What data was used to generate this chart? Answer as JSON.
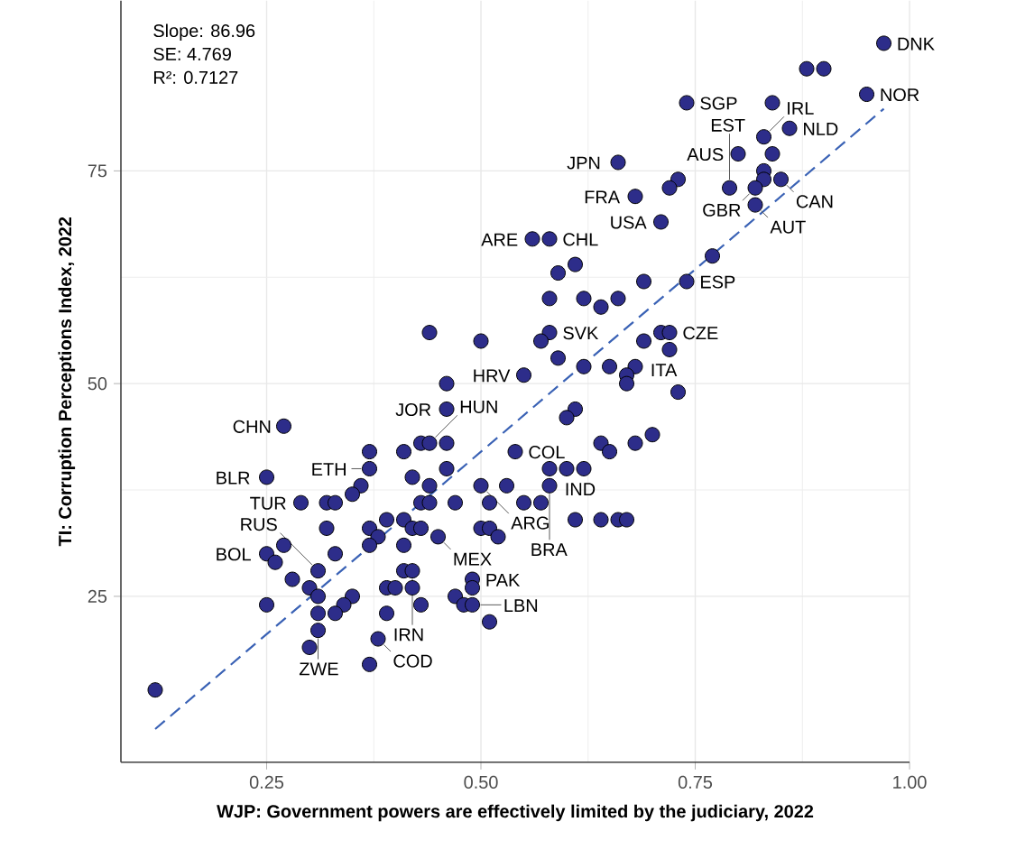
{
  "chart_data": {
    "type": "scatter",
    "xlabel": "WJP: Government powers are effectively limited by the judiciary, 2022",
    "ylabel": "TI: Corruption Perceptions Index, 2022",
    "xlim": [
      0.08,
      1.0
    ],
    "ylim": [
      5.5,
      95
    ],
    "xticks": [
      0.25,
      {
        "value": 0.5,
        "label": "0.50"
      },
      0.75,
      {
        "value": 1.0,
        "label": "1.00"
      }
    ],
    "yticks": [
      25,
      50,
      75
    ],
    "grid": true,
    "series": [
      {
        "type": "scatter",
        "color": "#2d2d8a",
        "marker": "circle",
        "x": [
          0.97,
          0.88,
          0.9,
          0.95,
          0.74,
          0.84,
          0.86,
          0.83,
          0.8,
          0.84,
          0.66,
          0.83,
          0.73,
          0.72,
          0.83,
          0.85,
          0.79,
          0.82,
          0.82,
          0.68,
          0.71,
          0.58,
          0.56,
          0.77,
          0.61,
          0.59,
          0.69,
          0.74,
          0.58,
          0.62,
          0.64,
          0.66,
          0.44,
          0.5,
          0.58,
          0.57,
          0.59,
          0.55,
          0.46,
          0.71,
          0.72,
          0.69,
          0.72,
          0.62,
          0.65,
          0.68,
          0.67,
          0.67,
          0.73,
          0.61,
          0.6,
          0.64,
          0.65,
          0.68,
          0.7,
          0.58,
          0.6,
          0.62,
          0.58,
          0.57,
          0.61,
          0.64,
          0.66,
          0.67,
          0.46,
          0.27,
          0.43,
          0.44,
          0.46,
          0.41,
          0.37,
          0.54,
          0.25,
          0.37,
          0.42,
          0.44,
          0.46,
          0.5,
          0.53,
          0.36,
          0.35,
          0.29,
          0.32,
          0.33,
          0.43,
          0.44,
          0.47,
          0.51,
          0.55,
          0.32,
          0.37,
          0.39,
          0.41,
          0.42,
          0.43,
          0.5,
          0.51,
          0.52,
          0.45,
          0.38,
          0.37,
          0.41,
          0.25,
          0.27,
          0.26,
          0.33,
          0.31,
          0.28,
          0.3,
          0.31,
          0.41,
          0.42,
          0.49,
          0.49,
          0.42,
          0.39,
          0.4,
          0.35,
          0.34,
          0.33,
          0.31,
          0.47,
          0.48,
          0.49,
          0.43,
          0.39,
          0.51,
          0.25,
          0.31,
          0.3,
          0.38,
          0.37,
          0.12
        ],
        "values": [
          90,
          87,
          87,
          84,
          83,
          83,
          80,
          79,
          77,
          77,
          76,
          75,
          74,
          73,
          74,
          74,
          73,
          73,
          71,
          72,
          69,
          67,
          67,
          65,
          64,
          63,
          62,
          62,
          60,
          60,
          59,
          60,
          56,
          55,
          56,
          55,
          53,
          51,
          50,
          56,
          56,
          55,
          54,
          52,
          52,
          52,
          51,
          50,
          49,
          47,
          46,
          43,
          42,
          43,
          44,
          40,
          40,
          40,
          38,
          36,
          34,
          34,
          34,
          34,
          47,
          45,
          43,
          43,
          43,
          42,
          42,
          42,
          39,
          40,
          39,
          38,
          40,
          38,
          38,
          38,
          37,
          36,
          36,
          36,
          36,
          36,
          36,
          36,
          36,
          33,
          33,
          34,
          34,
          33,
          33,
          33,
          33,
          32,
          32,
          32,
          31,
          31,
          30,
          31,
          29,
          30,
          28,
          27,
          26,
          25,
          28,
          28,
          27,
          26,
          26,
          26,
          26,
          25,
          24,
          23,
          23,
          25,
          24,
          24,
          24,
          23,
          22,
          24,
          21,
          19,
          20,
          17,
          14
        ]
      },
      {
        "type": "line",
        "color": "#3a62b5",
        "line_style": "dashed",
        "x": [
          0.12,
          0.97
        ],
        "values": [
          9.4,
          82.3
        ]
      }
    ],
    "annotations": [
      "Slope: 86.96",
      "SE: 4.769",
      "R²: 0.7127",
      {
        "text": "DNK",
        "x": 0.97,
        "y": 90
      },
      {
        "text": "NOR",
        "x": 0.95,
        "y": 84
      },
      {
        "text": "SGP",
        "x": 0.74,
        "y": 83
      },
      {
        "text": "NLD",
        "x": 0.86,
        "y": 80
      },
      {
        "text": "IRL",
        "x": 0.83,
        "y": 79
      },
      {
        "text": "AUS",
        "x": 0.8,
        "y": 77
      },
      {
        "text": "JPN",
        "x": 0.66,
        "y": 76
      },
      {
        "text": "CAN",
        "x": 0.85,
        "y": 74
      },
      {
        "text": "AUT",
        "x": 0.82,
        "y": 71
      },
      {
        "text": "GBR",
        "x": 0.82,
        "y": 73
      },
      {
        "text": "EST",
        "x": 0.79,
        "y": 73
      },
      {
        "text": "FRA",
        "x": 0.68,
        "y": 72
      },
      {
        "text": "USA",
        "x": 0.71,
        "y": 69
      },
      {
        "text": "CHL",
        "x": 0.58,
        "y": 67
      },
      {
        "text": "ARE",
        "x": 0.56,
        "y": 67
      },
      {
        "text": "ESP",
        "x": 0.74,
        "y": 62
      },
      {
        "text": "SVK",
        "x": 0.58,
        "y": 56
      },
      {
        "text": "CZE",
        "x": 0.72,
        "y": 56
      },
      {
        "text": "ITA",
        "x": 0.72,
        "y": 54
      },
      {
        "text": "HRV",
        "x": 0.55,
        "y": 51
      },
      {
        "text": "JOR",
        "x": 0.46,
        "y": 47
      },
      {
        "text": "CHN",
        "x": 0.27,
        "y": 45
      },
      {
        "text": "HUN",
        "x": 0.44,
        "y": 43
      },
      {
        "text": "COL",
        "x": 0.54,
        "y": 42
      },
      {
        "text": "IND",
        "x": 0.62,
        "y": 40
      },
      {
        "text": "BLR",
        "x": 0.25,
        "y": 39
      },
      {
        "text": "ETH",
        "x": 0.37,
        "y": 40
      },
      {
        "text": "ARG",
        "x": 0.5,
        "y": 38
      },
      {
        "text": "BRA",
        "x": 0.58,
        "y": 38
      },
      {
        "text": "TUR",
        "x": 0.29,
        "y": 36
      },
      {
        "text": "MEX",
        "x": 0.45,
        "y": 32
      },
      {
        "text": "BOL",
        "x": 0.25,
        "y": 30
      },
      {
        "text": "RUS",
        "x": 0.31,
        "y": 28
      },
      {
        "text": "IRN",
        "x": 0.42,
        "y": 28
      },
      {
        "text": "PAK",
        "x": 0.49,
        "y": 27
      },
      {
        "text": "LBN",
        "x": 0.49,
        "y": 24
      },
      {
        "text": "ZWE",
        "x": 0.31,
        "y": 21
      },
      {
        "text": "COD",
        "x": 0.38,
        "y": 20
      }
    ]
  }
}
